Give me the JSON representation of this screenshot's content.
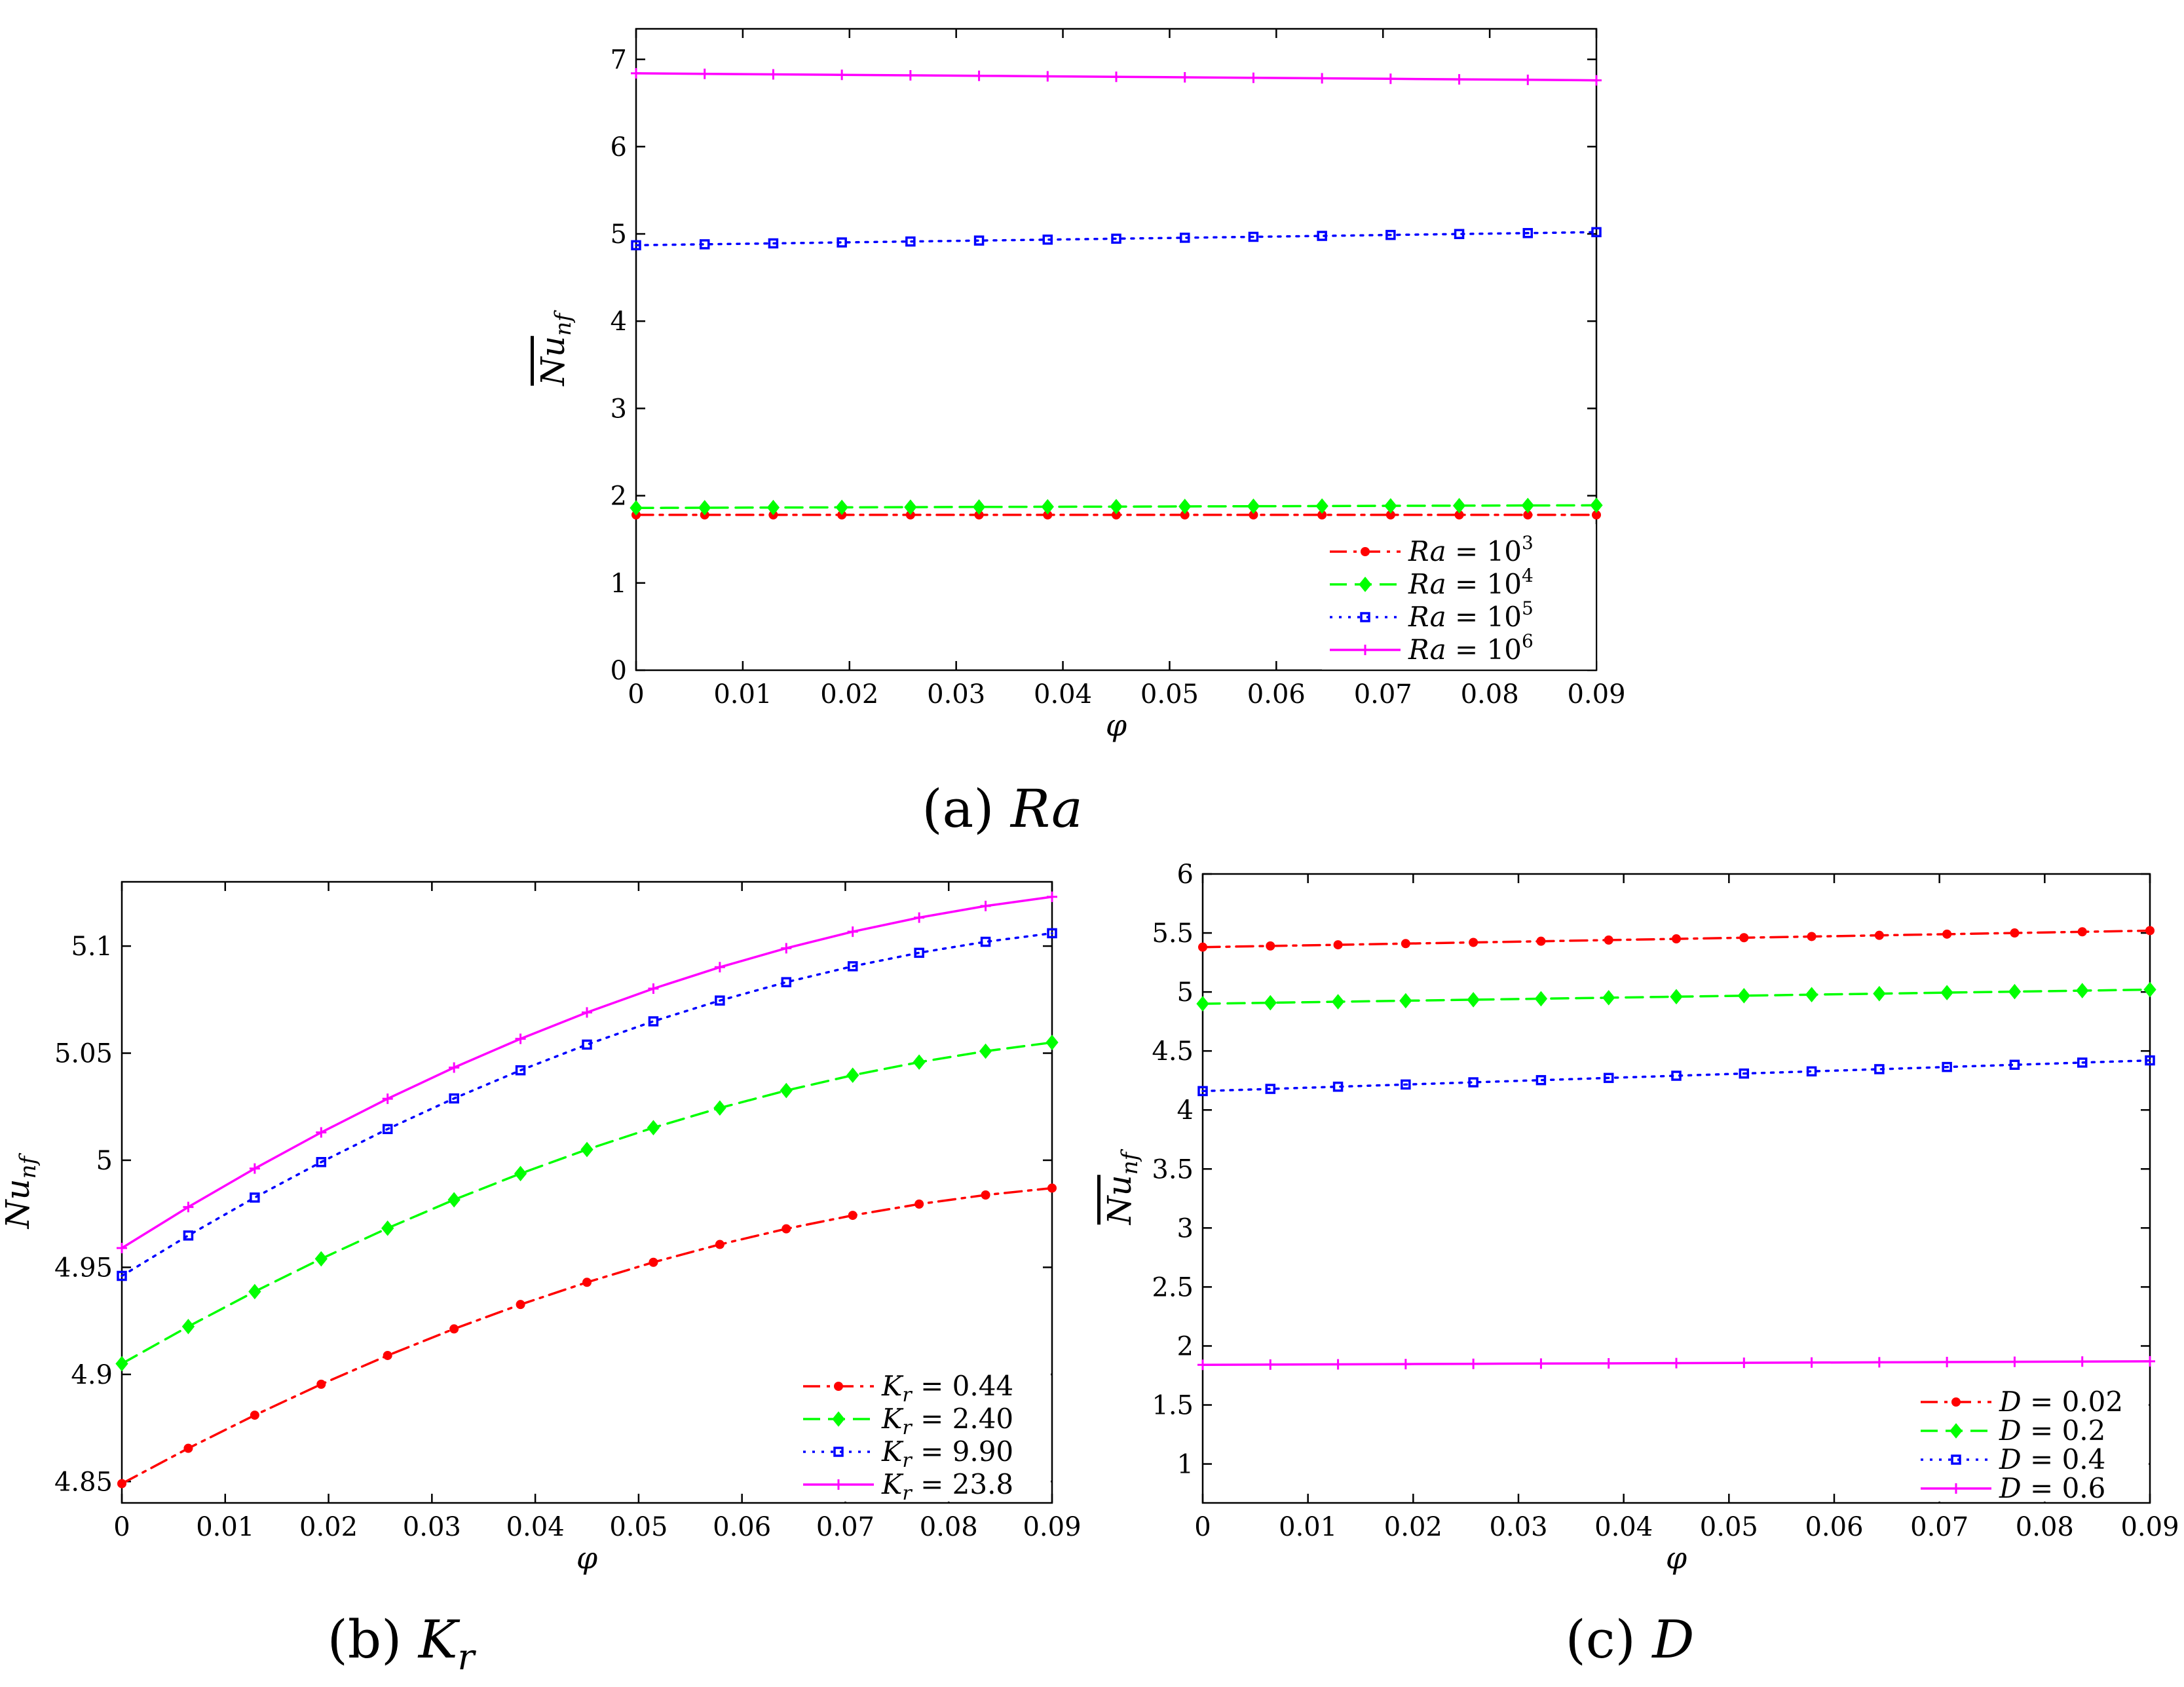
{
  "chart_data": [
    {
      "id": "a",
      "type": "line",
      "caption": {
        "prefix": "(a)",
        "var": "Ra"
      },
      "xlabel": "φ",
      "ylabel": {
        "base": "Nu",
        "sub": "nf"
      },
      "xlim": [
        0,
        0.09
      ],
      "ylim": [
        0,
        7.35
      ],
      "xticks": [
        0,
        0.01,
        0.02,
        0.03,
        0.04,
        0.05,
        0.06,
        0.07,
        0.08,
        0.09
      ],
      "xticklabels": [
        "0",
        "0.01",
        "0.02",
        "0.03",
        "0.04",
        "0.05",
        "0.06",
        "0.07",
        "0.08",
        "0.09"
      ],
      "yticks": [
        0,
        1,
        2,
        3,
        4,
        5,
        6,
        7
      ],
      "yticklabels": [
        "0",
        "1",
        "2",
        "3",
        "4",
        "5",
        "6",
        "7"
      ],
      "legend_position": "bottom-right",
      "series": [
        {
          "name": "Ra = 10^3",
          "legend": {
            "var": "Ra",
            "eq": " = 10",
            "sup": "3"
          },
          "color": "#ff0000",
          "style": "dashdot",
          "marker": "dot",
          "start": 1.78,
          "end": 1.78,
          "curve": 0
        },
        {
          "name": "Ra = 10^4",
          "legend": {
            "var": "Ra",
            "eq": " = 10",
            "sup": "4"
          },
          "color": "#00ff00",
          "style": "dashed",
          "marker": "diamond",
          "start": 1.86,
          "end": 1.89,
          "curve": 0
        },
        {
          "name": "Ra = 10^5",
          "legend": {
            "var": "Ra",
            "eq": " = 10",
            "sup": "5"
          },
          "color": "#0000ff",
          "style": "dotted",
          "marker": "square",
          "start": 4.87,
          "end": 5.02,
          "curve": 0
        },
        {
          "name": "Ra = 10^6",
          "legend": {
            "var": "Ra",
            "eq": " = 10",
            "sup": "6"
          },
          "color": "#ff00ff",
          "style": "solid",
          "marker": "plus",
          "start": 6.84,
          "end": 6.76,
          "curve": 0
        }
      ]
    },
    {
      "id": "b",
      "type": "line",
      "caption": {
        "prefix": "(b)",
        "var": "K",
        "sub": "r"
      },
      "xlabel": "φ",
      "ylabel": {
        "base": "Nu",
        "sub": "nf"
      },
      "xlim": [
        0,
        0.09
      ],
      "ylim": [
        4.84,
        5.13
      ],
      "xticks": [
        0,
        0.01,
        0.02,
        0.03,
        0.04,
        0.05,
        0.06,
        0.07,
        0.08,
        0.09
      ],
      "xticklabels": [
        "0",
        "0.01",
        "0.02",
        "0.03",
        "0.04",
        "0.05",
        "0.06",
        "0.07",
        "0.08",
        "0.09"
      ],
      "yticks": [
        4.85,
        4.9,
        4.95,
        5.0,
        5.05,
        5.1
      ],
      "yticklabels": [
        "4.85",
        "4.9",
        "4.95",
        "5",
        "5.05",
        "5.1"
      ],
      "legend_position": "bottom-right",
      "series": [
        {
          "name": "K_r = 0.44",
          "legend": {
            "var": "K",
            "sub": "r",
            "eq": " = 0.44"
          },
          "color": "#ff0000",
          "style": "dashdot",
          "marker": "dot",
          "start": 4.849,
          "end": 4.987,
          "curve": 0.025
        },
        {
          "name": "K_r = 2.40",
          "legend": {
            "var": "K",
            "sub": "r",
            "eq": " = 2.40"
          },
          "color": "#00ff00",
          "style": "dashed",
          "marker": "diamond",
          "start": 4.905,
          "end": 5.055,
          "curve": 0.025
        },
        {
          "name": "K_r = 9.90",
          "legend": {
            "var": "K",
            "sub": "r",
            "eq": " = 9.90"
          },
          "color": "#0000ff",
          "style": "dotted",
          "marker": "square",
          "start": 4.946,
          "end": 5.106,
          "curve": 0.028
        },
        {
          "name": "K_r = 23.8",
          "legend": {
            "var": "K",
            "sub": "r",
            "eq": " = 23.8"
          },
          "color": "#ff00ff",
          "style": "solid",
          "marker": "plus",
          "start": 4.959,
          "end": 5.123,
          "curve": 0.028
        }
      ]
    },
    {
      "id": "c",
      "type": "line",
      "caption": {
        "prefix": "(c)",
        "var": "D"
      },
      "xlabel": "φ",
      "ylabel": {
        "base": "Nu",
        "sub": "nf"
      },
      "xlim": [
        0,
        0.09
      ],
      "ylim": [
        0.67,
        6
      ],
      "xticks": [
        0,
        0.01,
        0.02,
        0.03,
        0.04,
        0.05,
        0.06,
        0.07,
        0.08,
        0.09
      ],
      "xticklabels": [
        "0",
        "0.01",
        "0.02",
        "0.03",
        "0.04",
        "0.05",
        "0.06",
        "0.07",
        "0.08",
        "0.09"
      ],
      "yticks": [
        1,
        1.5,
        2,
        2.5,
        3,
        3.5,
        4,
        4.5,
        5,
        5.5,
        6
      ],
      "yticklabels": [
        "1",
        "1.5",
        "2",
        "2.5",
        "3",
        "3.5",
        "4",
        "4.5",
        "5",
        "5.5",
        "6"
      ],
      "legend_position": "bottom-right",
      "series": [
        {
          "name": "D = 0.02",
          "legend": {
            "var": "D",
            "eq": " = 0.02"
          },
          "color": "#ff0000",
          "style": "dashdot",
          "marker": "dot",
          "start": 5.38,
          "end": 5.52,
          "curve": 0
        },
        {
          "name": "D = 0.2",
          "legend": {
            "var": "D",
            "eq": " = 0.2"
          },
          "color": "#00ff00",
          "style": "dashed",
          "marker": "diamond",
          "start": 4.9,
          "end": 5.02,
          "curve": 0
        },
        {
          "name": "D = 0.4",
          "legend": {
            "var": "D",
            "eq": " = 0.4"
          },
          "color": "#0000ff",
          "style": "dotted",
          "marker": "square",
          "start": 4.16,
          "end": 4.42,
          "curve": 0
        },
        {
          "name": "D = 0.6",
          "legend": {
            "var": "D",
            "eq": " = 0.6"
          },
          "color": "#ff00ff",
          "style": "solid",
          "marker": "plus",
          "start": 1.84,
          "end": 1.87,
          "curve": 0
        }
      ]
    }
  ]
}
